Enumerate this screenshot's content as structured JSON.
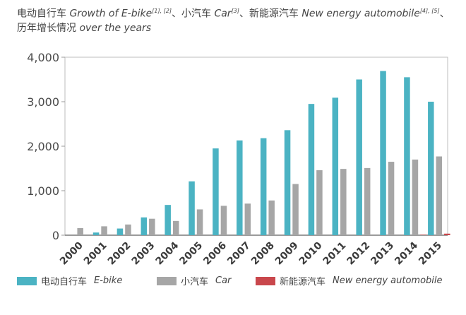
{
  "title": {
    "line1_zh_a": "电动自行车",
    "line1_en_a": "Growth of E-bike",
    "line1_ref_a": "[1], [2]",
    "line1_zh_b": "、小汽车",
    "line1_en_b": "Car",
    "line1_ref_b": "[3]",
    "line1_zh_c": "、新能源汽车",
    "line1_en_c": "New energy automobile",
    "line1_ref_c": "[4], [5]",
    "line1_tail": "、",
    "line2_zh": "历年增长情况",
    "line2_en": "over the years"
  },
  "chart_data": {
    "type": "bar",
    "categories": [
      "2000",
      "2001",
      "2002",
      "2003",
      "2004",
      "2005",
      "2006",
      "2007",
      "2008",
      "2009",
      "2010",
      "2011",
      "2012",
      "2013",
      "2014",
      "2015"
    ],
    "series": [
      {
        "name": "电动自行车 E-bike",
        "zh": "电动自行车",
        "en": "E-bike",
        "color": "#4bb3c3",
        "values": [
          0,
          60,
          150,
          400,
          680,
          1210,
          1950,
          2130,
          2180,
          2360,
          2950,
          3090,
          3500,
          3690,
          3550,
          3000
        ]
      },
      {
        "name": "小汽车 Car",
        "zh": "小汽车",
        "en": "Car",
        "color": "#a6a6a6",
        "values": [
          160,
          200,
          240,
          370,
          320,
          580,
          660,
          710,
          780,
          1150,
          1460,
          1490,
          1510,
          1650,
          1700,
          1770
        ]
      },
      {
        "name": "新能源汽车 New energy automobile",
        "zh": "新能源汽车",
        "en": "New energy automobile",
        "color": "#c9474c",
        "values": [
          0,
          0,
          0,
          0,
          0,
          0,
          0,
          0,
          0,
          0,
          0,
          0,
          0,
          0,
          10,
          35
        ]
      }
    ],
    "ylim": [
      0,
      4000
    ],
    "yticks": [
      0,
      1000,
      2000,
      3000,
      4000
    ],
    "ytick_labels": [
      "0",
      "1,000",
      "2,000",
      "3,000",
      "4,000"
    ],
    "grid": false,
    "legend_position": "bottom"
  }
}
